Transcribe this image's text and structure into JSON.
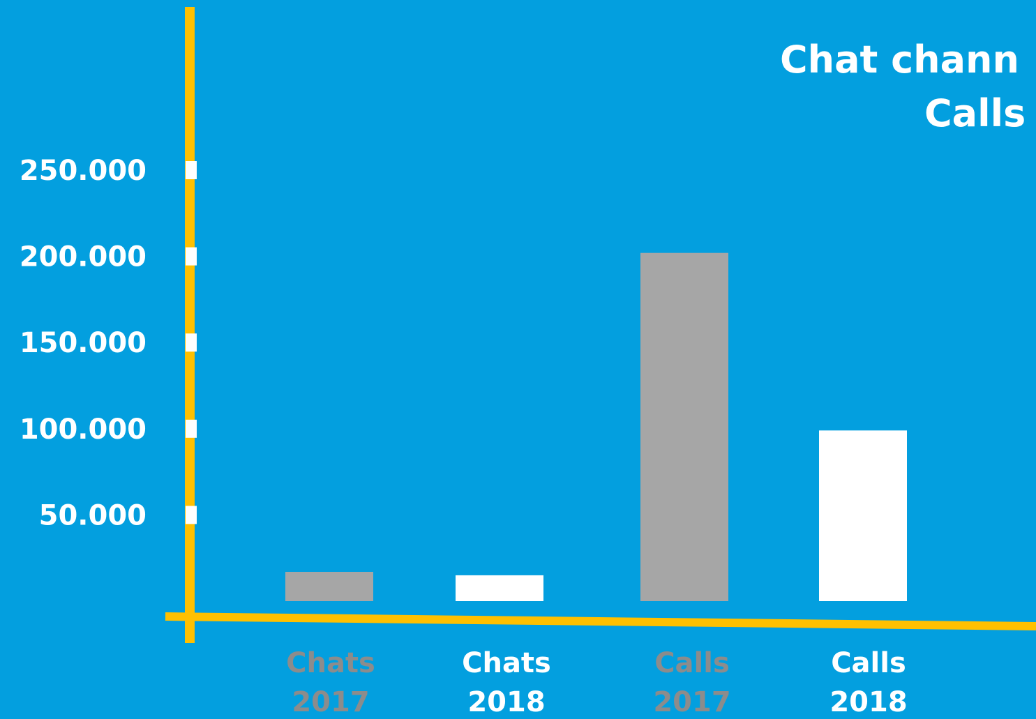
{
  "chart_data": {
    "type": "bar",
    "title_lines": [
      "Chat chann",
      "Calls"
    ],
    "categories": [
      [
        "Chats",
        "2017"
      ],
      [
        "Chats",
        "2018"
      ],
      [
        "Calls",
        "2017"
      ],
      [
        "Calls",
        "2018"
      ]
    ],
    "values": [
      17000,
      15000,
      202000,
      99000
    ],
    "bar_colors": [
      "#a6a6a6",
      "#ffffff",
      "#a6a6a6",
      "#ffffff"
    ],
    "label_colors": [
      "#8c8c8c",
      "#ffffff",
      "#8c8c8c",
      "#ffffff"
    ],
    "y_ticks": [
      {
        "value": 50000,
        "label": "50.000"
      },
      {
        "value": 100000,
        "label": "100.000"
      },
      {
        "value": 150000,
        "label": "150.000"
      },
      {
        "value": 200000,
        "label": "200.000"
      },
      {
        "value": 250000,
        "label": "250.000"
      }
    ],
    "ylim": [
      0,
      250000
    ],
    "xlabel": "",
    "ylabel": "",
    "grid": false,
    "colors": {
      "background": "#039fdf",
      "axis": "#ffc000",
      "tick_mark": "#ffffff"
    }
  }
}
